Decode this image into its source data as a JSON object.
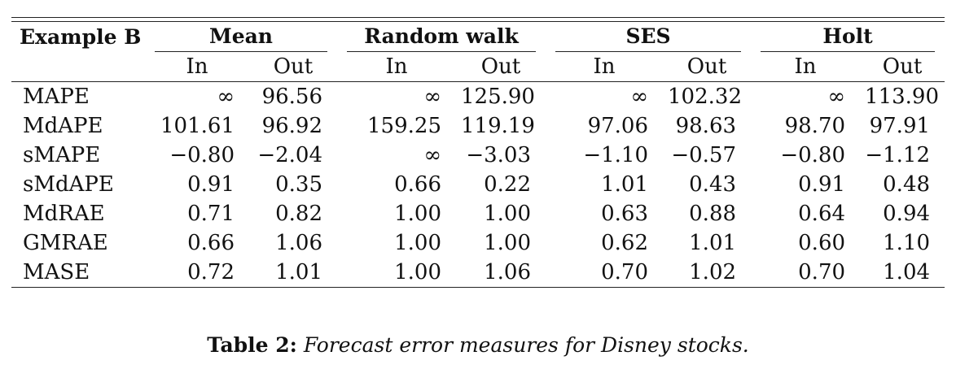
{
  "table": {
    "corner": "Example B",
    "groups": [
      "Mean",
      "Random walk",
      "SES",
      "Holt"
    ],
    "subheaders": [
      "In",
      "Out"
    ],
    "rows": [
      {
        "label": "MAPE",
        "values": [
          "∞",
          "96.56",
          "∞",
          "125.90",
          "∞",
          "102.32",
          "∞",
          "113.90"
        ]
      },
      {
        "label": "MdAPE",
        "values": [
          "101.61",
          "96.92",
          "159.25",
          "119.19",
          "97.06",
          "98.63",
          "98.70",
          "97.91"
        ]
      },
      {
        "label": "sMAPE",
        "values": [
          "−0.80",
          "−2.04",
          "∞",
          "−3.03",
          "−1.10",
          "−0.57",
          "−0.80",
          "−1.12"
        ]
      },
      {
        "label": "sMdAPE",
        "values": [
          "0.91",
          "0.35",
          "0.66",
          "0.22",
          "1.01",
          "0.43",
          "0.91",
          "0.48"
        ]
      },
      {
        "label": "MdRAE",
        "values": [
          "0.71",
          "0.82",
          "1.00",
          "1.00",
          "0.63",
          "0.88",
          "0.64",
          "0.94"
        ]
      },
      {
        "label": "GMRAE",
        "values": [
          "0.66",
          "1.06",
          "1.00",
          "1.00",
          "0.62",
          "1.01",
          "0.60",
          "1.10"
        ]
      },
      {
        "label": "MASE",
        "values": [
          "0.72",
          "1.01",
          "1.00",
          "1.06",
          "0.70",
          "1.02",
          "0.70",
          "1.04"
        ]
      }
    ]
  },
  "caption": {
    "label": "Table 2:",
    "text": "Forecast error measures for Disney stocks."
  }
}
